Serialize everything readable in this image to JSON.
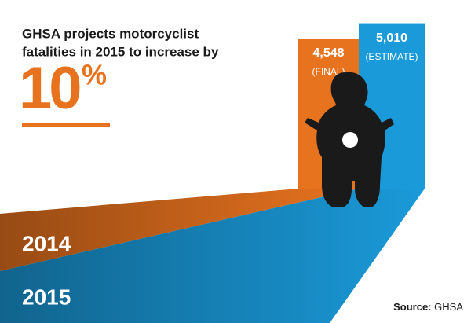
{
  "chart_data": {
    "type": "bar",
    "title_lines": [
      "GHSA projects motorcyclist",
      "fatalities in 2015 to increase by"
    ],
    "headline_number": "10",
    "headline_unit": "%",
    "categories": [
      "2014",
      "2015"
    ],
    "values": [
      4548,
      5010
    ],
    "value_labels": [
      "4,548",
      "5,010"
    ],
    "notes": [
      "(FINAL)",
      "(ESTIMATE)"
    ],
    "colors": [
      "#e8731f",
      "#1a9ad9"
    ],
    "source_label": "Source:",
    "source": "GHSA"
  }
}
